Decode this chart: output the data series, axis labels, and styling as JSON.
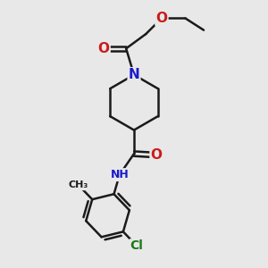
{
  "bg_color": "#e8e8e8",
  "bond_color": "#1a1a1a",
  "atom_colors": {
    "N": "#1a1acc",
    "O": "#cc1a1a",
    "Cl": "#1a7a1a",
    "C": "#1a1a1a"
  },
  "bond_width": 1.8,
  "font_size_atom": 11,
  "font_size_small": 9
}
